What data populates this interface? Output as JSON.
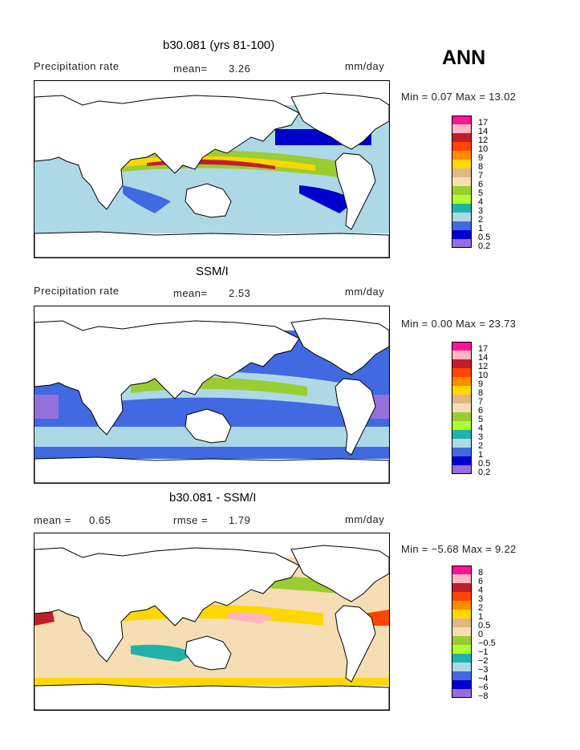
{
  "season": "ANN",
  "panels": [
    {
      "id": "model",
      "title": "b30.081 (yrs 81-100)",
      "left_label": "Precipitation rate",
      "mean_text": "mean=",
      "mean_value": "3.26",
      "units": "mm/day",
      "min_max": "Min =   0.07 Max =  13.02",
      "legend": [
        "17",
        "14",
        "12",
        "10",
        "9",
        "8",
        "7",
        "6",
        "5",
        "4",
        "3",
        "2",
        "1",
        "0.5",
        "0.2"
      ],
      "colors": [
        "#ff1493",
        "#ffb6c1",
        "#c01e2e",
        "#ff4500",
        "#ff8c00",
        "#ffd700",
        "#deb887",
        "#f5deb3",
        "#9acd32",
        "#adff2f",
        "#20b2aa",
        "#add8e6",
        "#4169e1",
        "#0000cd",
        "#9370db"
      ]
    },
    {
      "id": "obs",
      "title": "SSM/I",
      "left_label": "Precipitation rate",
      "mean_text": "mean=",
      "mean_value": "2.53",
      "units": "mm/day",
      "min_max": "Min =   0.00 Max =  23.73",
      "legend": [
        "17",
        "14",
        "12",
        "10",
        "9",
        "8",
        "7",
        "6",
        "5",
        "4",
        "3",
        "2",
        "1",
        "0.5",
        "0.2"
      ],
      "colors": [
        "#ff1493",
        "#ffb6c1",
        "#c01e2e",
        "#ff4500",
        "#ff8c00",
        "#ffd700",
        "#deb887",
        "#f5deb3",
        "#9acd32",
        "#adff2f",
        "#20b2aa",
        "#add8e6",
        "#4169e1",
        "#0000cd",
        "#9370db"
      ]
    },
    {
      "id": "diff",
      "title": "b30.081 - SSM/I",
      "left_label": "mean =",
      "mean_text": "rmse =",
      "left_value": "0.65",
      "mean_value": "1.79",
      "units": "mm/day",
      "min_max": "Min = −5.68 Max =   9.22",
      "legend": [
        "8",
        "6",
        "4",
        "3",
        "2",
        "1",
        "0.5",
        "0",
        "−0.5",
        "−1",
        "−2",
        "−3",
        "−4",
        "−6",
        "−8"
      ],
      "colors": [
        "#ff1493",
        "#ffb6c1",
        "#c01e2e",
        "#ff4500",
        "#ff8c00",
        "#ffd700",
        "#deb887",
        "#f5deb3",
        "#9acd32",
        "#adff2f",
        "#20b2aa",
        "#add8e6",
        "#4169e1",
        "#0000cd",
        "#9370db"
      ]
    }
  ]
}
